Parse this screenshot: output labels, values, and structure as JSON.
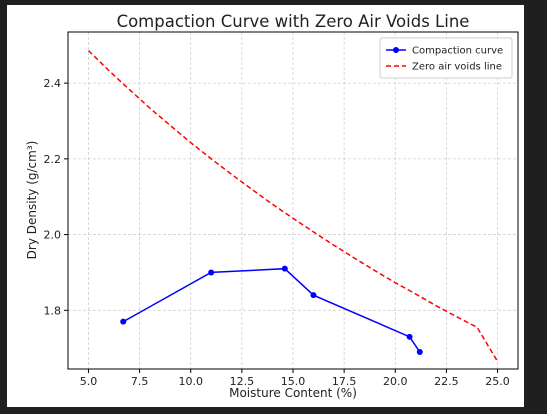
{
  "chart_data": {
    "type": "line",
    "title": "Compaction Curve with Zero Air Voids Line",
    "xlabel": "Moisture Content (%)",
    "ylabel": "Dry Density (g/cm³)",
    "xlim": [
      4.0,
      26.0
    ],
    "ylim": [
      1.645,
      2.535
    ],
    "grid": true,
    "legend_position": "top-right",
    "x_ticks": [
      5.0,
      7.5,
      10.0,
      12.5,
      15.0,
      17.5,
      20.0,
      22.5,
      25.0
    ],
    "x_tick_labels": [
      "5.0",
      "7.5",
      "10.0",
      "12.5",
      "15.0",
      "17.5",
      "20.0",
      "22.5",
      "25.0"
    ],
    "y_ticks": [
      1.8,
      2.0,
      2.2,
      2.4
    ],
    "y_tick_labels": [
      "1.8",
      "2.0",
      "2.2",
      "2.4"
    ],
    "series": [
      {
        "name": "Compaction curve",
        "color": "#0000ff",
        "style": "solid-with-markers",
        "x": [
          6.7,
          11.0,
          14.6,
          16.0,
          20.7,
          21.2
        ],
        "y": [
          1.77,
          1.9,
          1.91,
          1.84,
          1.73,
          1.69
        ]
      },
      {
        "name": "Zero air voids line",
        "color": "#ff0000",
        "style": "dashed",
        "x": [
          5,
          6,
          7,
          8,
          9,
          10,
          11,
          12,
          13,
          14,
          15,
          16,
          17,
          18,
          19,
          20,
          21,
          22,
          23,
          24,
          25
        ],
        "y": [
          2.486,
          2.433,
          2.383,
          2.334,
          2.288,
          2.243,
          2.2,
          2.159,
          2.119,
          2.08,
          2.043,
          2.007,
          1.972,
          1.938,
          1.905,
          1.873,
          1.843,
          1.812,
          1.783,
          1.755,
          1.665
        ]
      }
    ]
  }
}
